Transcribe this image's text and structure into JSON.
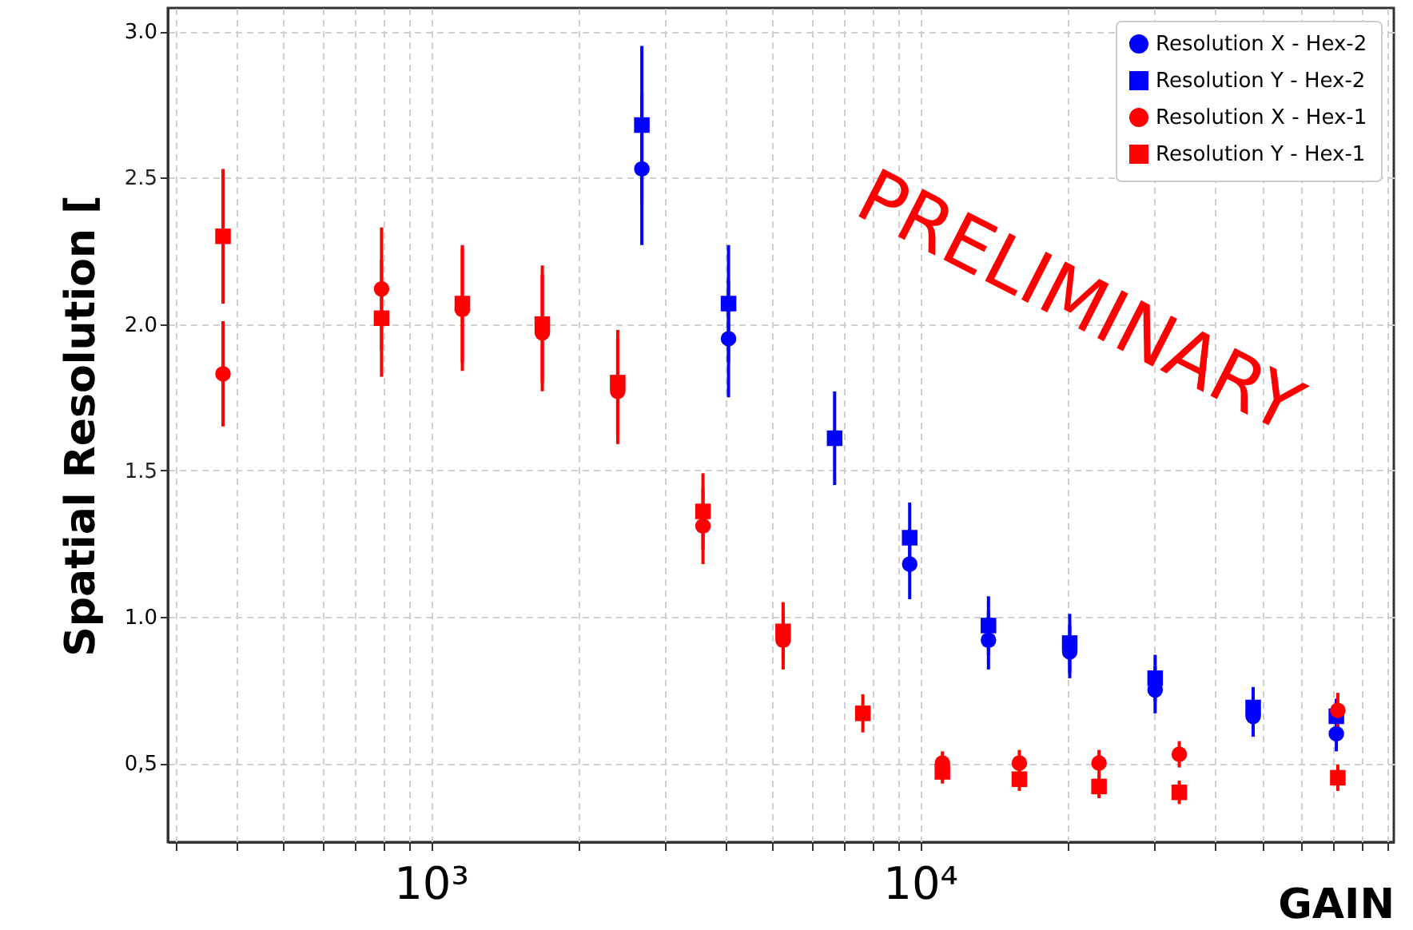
{
  "chart_data": {
    "type": "scatter",
    "xlabel": "GAIN",
    "ylabel": "Spatial Resolution [",
    "annotations": [
      "PRELIMINARY"
    ],
    "log": "x",
    "grid": true,
    "legend": "top right",
    "xlim": [
      290,
      93000
    ],
    "xticks": [
      {
        "value": 300,
        "label": null
      },
      {
        "value": 400,
        "label": null
      },
      {
        "value": 500,
        "label": null
      },
      {
        "value": 600,
        "label": null
      },
      {
        "value": 700,
        "label": null
      },
      {
        "value": 800,
        "label": null
      },
      {
        "value": 900,
        "label": null
      },
      {
        "value": 1000,
        "label": "10³"
      },
      {
        "value": 2000,
        "label": null
      },
      {
        "value": 3000,
        "label": null
      },
      {
        "value": 4000,
        "label": null
      },
      {
        "value": 5000,
        "label": null
      },
      {
        "value": 6000,
        "label": null
      },
      {
        "value": 7000,
        "label": null
      },
      {
        "value": 8000,
        "label": null
      },
      {
        "value": 9000,
        "label": null
      },
      {
        "value": 10000,
        "label": "10⁴"
      },
      {
        "value": 20000,
        "label": null
      },
      {
        "value": 30000,
        "label": null
      },
      {
        "value": 40000,
        "label": null
      },
      {
        "value": 50000,
        "label": null
      },
      {
        "value": 60000,
        "label": null
      },
      {
        "value": 70000,
        "label": null
      },
      {
        "value": 80000,
        "label": null
      },
      {
        "value": 90000,
        "label": null
      }
    ],
    "ylim": [
      0.23,
      3.08
    ],
    "yticks": [
      {
        "value": 0.5,
        "label": "0,5"
      },
      {
        "value": 1,
        "label": "1.0"
      },
      1.5,
      {
        "value": 2,
        "label": "2.0"
      },
      2.5,
      {
        "value": 3,
        "label": "3.0"
      }
    ],
    "series": [
      {
        "name": "Resolution X - Hex-2",
        "color": "#0000ff",
        "marker": "circle",
        "x": [
          2700,
          4060,
          6690,
          9525,
          13800,
          20230,
          30240,
          47970,
          70960
        ],
        "values": [
          2.53,
          1.95,
          null,
          1.18,
          0.92,
          0.88,
          0.75,
          0.66,
          0.6
        ],
        "errors": [
          0.26,
          0.2,
          null,
          0.12,
          0.1,
          0.09,
          0.08,
          0.07,
          0.06
        ]
      },
      {
        "name": "Resolution Y - Hex-2",
        "color": "#0000ff",
        "marker": "square",
        "x": [
          2700,
          4060,
          6690,
          9525,
          13800,
          20230,
          30240,
          47970,
          70960
        ],
        "values": [
          2.68,
          2.07,
          1.61,
          1.27,
          0.97,
          0.91,
          0.79,
          0.69,
          0.66
        ],
        "errors": [
          0.27,
          0.2,
          0.16,
          0.12,
          0.1,
          0.1,
          0.08,
          0.07,
          0.06
        ]
      },
      {
        "name": "Resolution X - Hex-1",
        "color": "#ff0000",
        "marker": "circle",
        "x": [
          376,
          793,
          1160,
          1690,
          2410,
          3600,
          5250,
          7640,
          11110,
          15960,
          23220,
          33880,
          71450
        ],
        "values": [
          1.83,
          2.12,
          2.05,
          1.97,
          1.77,
          1.31,
          0.92,
          null,
          0.5,
          0.5,
          0.5,
          0.53,
          0.68
        ],
        "errors": [
          0.18,
          0.21,
          0.21,
          0.2,
          0.18,
          0.13,
          0.1,
          null,
          0.04,
          0.045,
          0.045,
          0.045,
          0.06
        ]
      },
      {
        "name": "Resolution Y - Hex-1",
        "color": "#ff0000",
        "marker": "square",
        "x": [
          376,
          793,
          1160,
          1690,
          2410,
          3600,
          5250,
          7640,
          11110,
          15960,
          23220,
          33880,
          71450
        ],
        "values": [
          2.3,
          2.02,
          2.07,
          2.0,
          1.8,
          1.36,
          0.95,
          0.67,
          0.47,
          0.445,
          0.42,
          0.4,
          0.45
        ],
        "errors": [
          0.23,
          0.2,
          0.2,
          0.2,
          0.18,
          0.13,
          0.1,
          0.065,
          0.04,
          0.04,
          0.04,
          0.04,
          0.045
        ]
      }
    ]
  }
}
